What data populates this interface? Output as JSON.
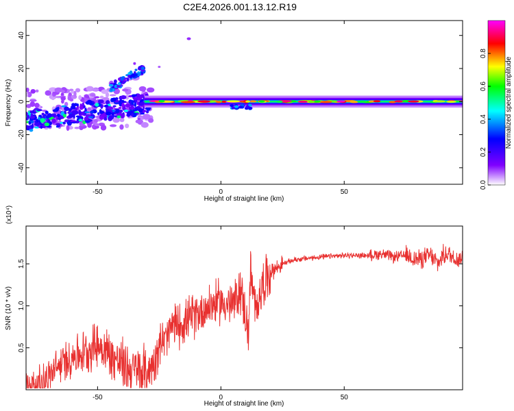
{
  "title": "C2E4.2026.001.13.12.R19",
  "chart_data": [
    {
      "type": "heatmap",
      "xlabel": "Height of straight line (km)",
      "ylabel": "Frequency (Hz)",
      "xlim": [
        -79,
        98
      ],
      "ylim": [
        -50,
        49
      ],
      "xticks": [
        -50,
        0,
        50
      ],
      "yticks": [
        -40,
        -20,
        0,
        20,
        40
      ],
      "grid": false,
      "legend": "none",
      "colorbar": {
        "label": "Normalized spectral amplitude",
        "range": [
          0,
          1
        ],
        "ticks": [
          "0.0",
          "0.2",
          "0.4",
          "0.6",
          "0.8"
        ],
        "colormap": "rainbow-reversed",
        "colors": [
          "#ffffff",
          "#8000ff",
          "#0000ff",
          "#00ffff",
          "#00ff00",
          "#ffff00",
          "#ff0000",
          "#ff00ff"
        ]
      },
      "features": [
        {
          "x_range": [
            -79,
            -30
          ],
          "freq_range": [
            -15,
            8
          ],
          "amplitude": "scattered 0.2-0.6"
        },
        {
          "x_range": [
            -45,
            -31
          ],
          "freq_range": [
            8,
            22
          ],
          "amplitude": "rising band 0.2-0.5"
        },
        {
          "x_range": [
            -30,
            98
          ],
          "freq_range": [
            -2,
            2
          ],
          "amplitude": "continuous band 0.4-1.0"
        }
      ]
    },
    {
      "type": "line",
      "xlabel": "Height of straight line (km)",
      "ylabel": "SNR (10 * v/v)",
      "y_multiplier": "(x10⁴)",
      "xlim": [
        -79,
        98
      ],
      "ylim": [
        0,
        1.95
      ],
      "xticks": [
        -50,
        0,
        50
      ],
      "yticks": [
        "0.5",
        "1.0",
        "1.5"
      ],
      "grid": false,
      "legend": "none",
      "series_color": "#e8302f",
      "x": [
        -79,
        -75,
        -70,
        -65,
        -60,
        -55,
        -50,
        -45,
        -40,
        -35,
        -30,
        -27,
        -25,
        -22,
        -20,
        -15,
        -10,
        -5,
        0,
        5,
        8,
        10,
        11,
        12,
        14,
        16,
        20,
        25,
        30,
        40,
        50,
        55,
        60,
        65,
        70,
        75,
        80,
        85,
        88,
        90,
        92,
        95,
        98
      ],
      "values": [
        0.08,
        0.05,
        0.15,
        0.3,
        0.4,
        0.45,
        0.55,
        0.42,
        0.3,
        0.22,
        0.2,
        0.35,
        0.55,
        0.6,
        0.75,
        0.8,
        0.9,
        1.0,
        1.05,
        1.0,
        1.2,
        0.9,
        0.6,
        1.4,
        0.9,
        1.2,
        1.4,
        1.5,
        1.55,
        1.58,
        1.6,
        1.6,
        1.6,
        1.62,
        1.58,
        1.6,
        1.55,
        1.6,
        1.5,
        1.6,
        1.62,
        1.56,
        1.57
      ]
    }
  ]
}
